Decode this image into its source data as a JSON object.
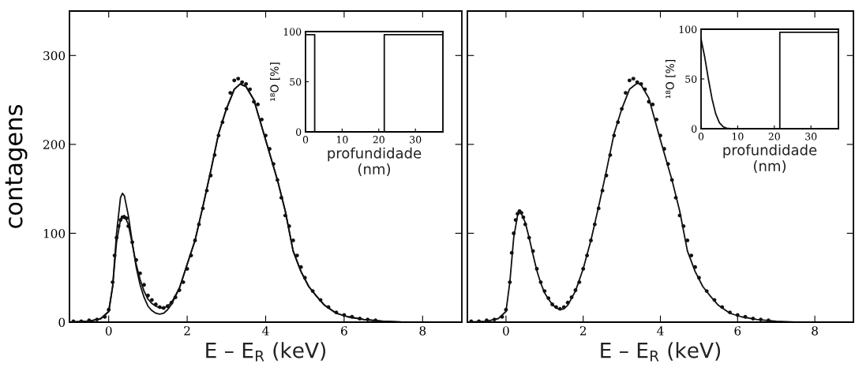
{
  "chart_data": [
    {
      "type": "line",
      "xlabel": "E – E$_{R}$ (keV)",
      "ylabel": "contagens",
      "xlim": [
        -1,
        9
      ],
      "xticks": [
        0,
        2,
        4,
        6,
        8
      ],
      "ylim": [
        0,
        350
      ],
      "yticks": [
        0,
        100,
        200,
        300
      ],
      "grid": false,
      "legend": false,
      "series": [
        {
          "color": "#111111",
          "marker": "none",
          "x": [
            -1,
            -0.5,
            -0.2,
            0,
            0.1,
            0.2,
            0.3,
            0.35,
            0.4,
            0.5,
            0.6,
            0.7,
            0.8,
            0.9,
            1.0,
            1.1,
            1.2,
            1.3,
            1.4,
            1.5,
            1.6,
            1.8,
            2.0,
            2.2,
            2.4,
            2.6,
            2.8,
            3.0,
            3.2,
            3.35,
            3.5,
            3.7,
            4.0,
            4.3,
            4.5,
            4.7,
            4.9,
            5.1,
            5.3,
            5.5,
            5.8,
            6.1,
            6.5,
            7.0,
            7.5,
            9
          ],
          "values": [
            0,
            1,
            4,
            12,
            40,
            100,
            140,
            145,
            142,
            120,
            90,
            62,
            42,
            28,
            18,
            13,
            10,
            9,
            10,
            14,
            20,
            38,
            65,
            92,
            130,
            170,
            212,
            240,
            262,
            268,
            265,
            250,
            205,
            160,
            125,
            80,
            57,
            40,
            29,
            19,
            10,
            6,
            3,
            1,
            0,
            0
          ]
        },
        {
          "color": "#111111",
          "marker": "none",
          "x": [
            -1,
            -0.5,
            -0.2,
            0,
            0.1,
            0.2,
            0.3,
            0.35,
            0.4,
            0.5,
            0.6,
            0.7,
            0.8,
            0.9,
            1.0,
            1.1,
            1.2,
            1.3,
            1.4,
            1.5,
            1.6,
            1.8,
            2.0,
            2.2,
            2.4,
            2.6,
            2.8,
            3.0,
            3.2,
            3.35,
            3.5,
            3.7,
            4.0,
            4.3,
            4.5,
            4.7,
            4.9,
            5.1,
            5.3,
            5.5,
            5.8,
            6.1,
            6.5,
            7.0,
            7.5,
            9
          ],
          "values": [
            0,
            1,
            4,
            12,
            40,
            90,
            115,
            119,
            120,
            110,
            88,
            65,
            48,
            35,
            26,
            21,
            18,
            16,
            16,
            18,
            22,
            38,
            65,
            92,
            130,
            170,
            212,
            240,
            262,
            268,
            265,
            250,
            205,
            160,
            125,
            80,
            57,
            40,
            29,
            19,
            10,
            6,
            3,
            1,
            0,
            0
          ]
        },
        {
          "type": "scatter",
          "color": "#111111",
          "marker": "circle",
          "x": [
            -0.9,
            -0.7,
            -0.5,
            -0.3,
            -0.1,
            0.0,
            0.1,
            0.15,
            0.2,
            0.25,
            0.3,
            0.35,
            0.4,
            0.45,
            0.5,
            0.6,
            0.7,
            0.8,
            0.9,
            1.0,
            1.1,
            1.2,
            1.3,
            1.4,
            1.5,
            1.6,
            1.7,
            1.8,
            1.9,
            2.0,
            2.1,
            2.2,
            2.3,
            2.4,
            2.5,
            2.6,
            2.7,
            2.8,
            2.9,
            3.0,
            3.1,
            3.2,
            3.3,
            3.4,
            3.5,
            3.6,
            3.7,
            3.8,
            3.9,
            4.0,
            4.1,
            4.2,
            4.3,
            4.4,
            4.5,
            4.6,
            4.7,
            4.8,
            4.9,
            5.0,
            5.2,
            5.4,
            5.6,
            5.8,
            6.0,
            6.2,
            6.4,
            6.6,
            6.8
          ],
          "values": [
            1,
            1,
            2,
            3,
            6,
            14,
            45,
            75,
            95,
            108,
            115,
            118,
            118,
            117,
            108,
            90,
            70,
            55,
            42,
            30,
            25,
            20,
            17,
            16,
            18,
            22,
            28,
            36,
            45,
            60,
            75,
            92,
            110,
            128,
            148,
            165,
            188,
            210,
            225,
            240,
            258,
            272,
            274,
            270,
            268,
            262,
            248,
            245,
            228,
            210,
            195,
            178,
            160,
            140,
            120,
            108,
            92,
            75,
            62,
            50,
            35,
            25,
            17,
            11,
            8,
            6,
            4,
            3,
            2
          ]
        }
      ]
    },
    {
      "type": "line",
      "xlabel": "profundidade\n(nm)",
      "ylabel": "¹⁸O [%]",
      "xlim": [
        0,
        37.5
      ],
      "xticks": [
        0,
        10,
        20,
        30
      ],
      "ylim": [
        0,
        100
      ],
      "yticks": [
        0,
        50,
        100
      ],
      "grid": false,
      "legend": false,
      "series": [
        {
          "color": "#111111",
          "marker": "none",
          "x": [
            0,
            2.5,
            2.5,
            21.5,
            21.5,
            37.5
          ],
          "values": [
            97,
            97,
            0,
            0,
            97,
            97
          ]
        }
      ]
    },
    {
      "type": "line",
      "xlabel": "E – E$_{R}$ (keV)",
      "xlim": [
        -1,
        9
      ],
      "xticks": [
        0,
        2,
        4,
        6,
        8
      ],
      "ylim": [
        0,
        350
      ],
      "yticks": [
        {
          "value": 0,
          "label": null
        },
        {
          "value": 100,
          "label": null
        },
        {
          "value": 200,
          "label": null
        },
        {
          "value": 300,
          "label": null
        }
      ],
      "tick_labels": "x",
      "grid": false,
      "legend": false,
      "series": [
        {
          "color": "#111111",
          "marker": "none",
          "x": [
            -1,
            -0.5,
            -0.2,
            0,
            0.1,
            0.2,
            0.3,
            0.35,
            0.4,
            0.5,
            0.6,
            0.7,
            0.8,
            0.9,
            1.0,
            1.1,
            1.2,
            1.3,
            1.4,
            1.5,
            1.6,
            1.8,
            2.0,
            2.2,
            2.4,
            2.6,
            2.8,
            3.0,
            3.2,
            3.4,
            3.5,
            3.7,
            4.0,
            4.3,
            4.5,
            4.7,
            4.9,
            5.1,
            5.3,
            5.5,
            5.8,
            6.1,
            6.5,
            7.0,
            7.5,
            9
          ],
          "values": [
            0,
            1,
            4,
            12,
            45,
            95,
            120,
            124,
            122,
            112,
            95,
            76,
            58,
            44,
            33,
            26,
            20,
            16,
            14,
            15,
            19,
            35,
            60,
            92,
            130,
            170,
            212,
            240,
            262,
            269,
            267,
            252,
            205,
            160,
            125,
            80,
            57,
            40,
            29,
            19,
            10,
            6,
            3,
            1,
            0,
            0
          ]
        },
        {
          "type": "scatter",
          "color": "#111111",
          "marker": "circle",
          "x": [
            -0.9,
            -0.7,
            -0.5,
            -0.3,
            -0.1,
            0.0,
            0.1,
            0.15,
            0.2,
            0.25,
            0.3,
            0.35,
            0.4,
            0.45,
            0.5,
            0.6,
            0.7,
            0.8,
            0.9,
            1.0,
            1.1,
            1.2,
            1.3,
            1.4,
            1.5,
            1.6,
            1.7,
            1.8,
            1.9,
            2.0,
            2.1,
            2.2,
            2.3,
            2.4,
            2.5,
            2.6,
            2.7,
            2.8,
            2.9,
            3.0,
            3.1,
            3.2,
            3.3,
            3.4,
            3.5,
            3.6,
            3.7,
            3.8,
            3.9,
            4.0,
            4.1,
            4.2,
            4.3,
            4.4,
            4.5,
            4.6,
            4.7,
            4.8,
            4.9,
            5.0,
            5.2,
            5.4,
            5.6,
            5.8,
            6.0,
            6.2,
            6.4,
            6.6,
            6.8
          ],
          "values": [
            1,
            1,
            2,
            3,
            6,
            14,
            45,
            78,
            100,
            115,
            122,
            125,
            123,
            118,
            110,
            95,
            80,
            60,
            45,
            35,
            27,
            20,
            17,
            15,
            17,
            22,
            28,
            36,
            45,
            60,
            75,
            92,
            110,
            128,
            148,
            165,
            188,
            210,
            225,
            240,
            258,
            272,
            274,
            270,
            268,
            262,
            248,
            245,
            228,
            210,
            195,
            178,
            160,
            140,
            120,
            108,
            92,
            75,
            62,
            50,
            35,
            25,
            17,
            11,
            8,
            6,
            4,
            3,
            2
          ]
        }
      ]
    },
    {
      "type": "line",
      "xlabel": "profundidade\n(nm)",
      "ylabel": "¹⁸O [%]",
      "xlim": [
        0,
        37.5
      ],
      "xticks": [
        0,
        10,
        20,
        30
      ],
      "ylim": [
        0,
        100
      ],
      "yticks": [
        0,
        50,
        100
      ],
      "grid": false,
      "legend": false,
      "series": [
        {
          "color": "#111111",
          "marker": "none",
          "x": [
            0,
            1,
            2,
            3,
            4,
            5,
            6,
            7,
            8,
            21.5,
            21.5,
            37.5
          ],
          "values": [
            90,
            72,
            50,
            30,
            15,
            6,
            2,
            0.5,
            0,
            0,
            97,
            97
          ]
        }
      ]
    }
  ]
}
